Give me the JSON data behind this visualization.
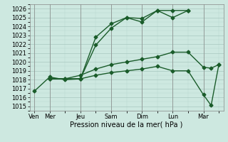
{
  "xlabel": "Pression niveau de la mer( hPa )",
  "ylim": [
    1014.5,
    1026.5
  ],
  "yticks": [
    1015,
    1016,
    1017,
    1018,
    1019,
    1020,
    1021,
    1022,
    1023,
    1024,
    1025,
    1026
  ],
  "xtick_labels": [
    "Ven",
    "Mer",
    "Jeu",
    "Sam",
    "Dim",
    "Lun",
    "Mar"
  ],
  "xtick_positions": [
    0,
    1,
    3,
    5,
    7,
    9,
    11
  ],
  "xlim": [
    -0.3,
    12.3
  ],
  "background_color": "#cde8e0",
  "line_color": "#1a5c2a",
  "line1_x": [
    0,
    1,
    2,
    3,
    4,
    5,
    6,
    7,
    8,
    9,
    10
  ],
  "line1_y": [
    1016.7,
    1018.3,
    1018.0,
    1018.1,
    1021.9,
    1023.8,
    1025.0,
    1024.9,
    1025.8,
    1025.8,
    1025.8
  ],
  "line2_x": [
    1,
    2,
    3,
    4,
    5,
    6,
    7,
    8,
    9,
    10
  ],
  "line2_y": [
    1018.1,
    1018.1,
    1018.1,
    1022.8,
    1024.3,
    1025.0,
    1024.5,
    1025.8,
    1025.0,
    1025.8
  ],
  "line3_x": [
    1,
    2,
    3,
    4,
    5,
    6,
    7,
    8,
    9,
    10,
    11,
    11.5,
    12
  ],
  "line3_y": [
    1018.1,
    1018.1,
    1018.5,
    1019.2,
    1019.7,
    1020.0,
    1020.3,
    1020.6,
    1021.1,
    1021.1,
    1019.4,
    1019.3,
    1019.7
  ],
  "line4_x": [
    1,
    2,
    3,
    4,
    5,
    6,
    7,
    8,
    9,
    10,
    11,
    11.5,
    12
  ],
  "line4_y": [
    1018.1,
    1018.1,
    1018.1,
    1018.5,
    1018.8,
    1019.0,
    1019.2,
    1019.5,
    1019.0,
    1019.0,
    1016.3,
    1015.1,
    1019.7
  ],
  "marker": "D",
  "markersize": 2.5,
  "linewidth": 1.0,
  "xlabel_fontsize": 7,
  "tick_fontsize": 6
}
